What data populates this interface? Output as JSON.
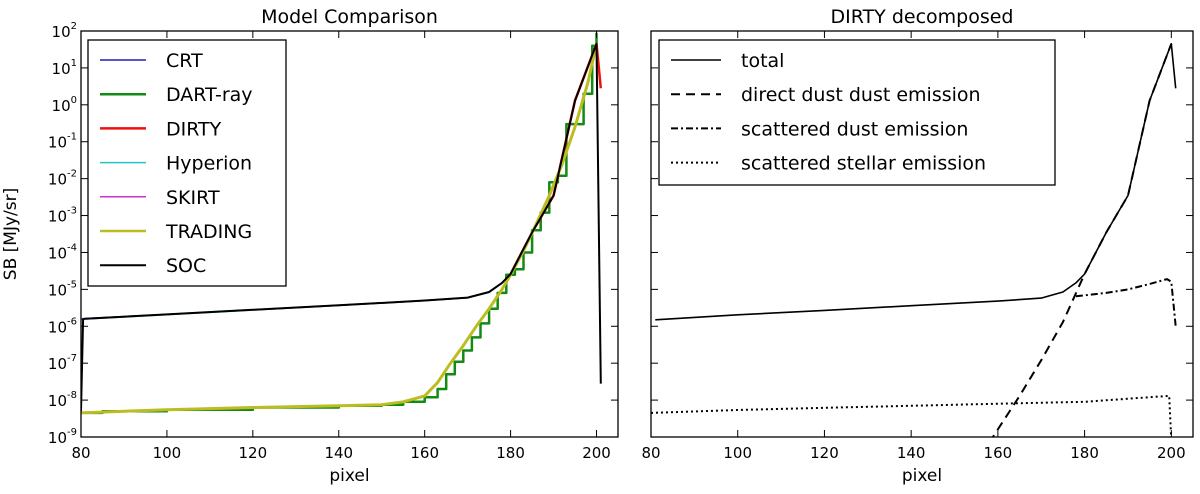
{
  "chart_data": [
    {
      "type": "line",
      "title": "Model Comparison",
      "xlabel": "pixel",
      "ylabel": "SB [MJy/sr]",
      "xlim": [
        80,
        205
      ],
      "ylim": [
        1e-09,
        100
      ],
      "yscale": "log",
      "xticks": [
        "80",
        "100",
        "120",
        "140",
        "160",
        "180",
        "200"
      ],
      "yticks": [
        {
          "base": "10",
          "exp": "2"
        },
        {
          "base": "10",
          "exp": "1"
        },
        {
          "base": "10",
          "exp": "0"
        },
        {
          "base": "10",
          "exp": "-1"
        },
        {
          "base": "10",
          "exp": "-2"
        },
        {
          "base": "10",
          "exp": "-3"
        },
        {
          "base": "10",
          "exp": "-4"
        },
        {
          "base": "10",
          "exp": "-5"
        },
        {
          "base": "10",
          "exp": "-6"
        },
        {
          "base": "10",
          "exp": "-7"
        },
        {
          "base": "10",
          "exp": "-8"
        },
        {
          "base": "10",
          "exp": "-9"
        }
      ],
      "legend_position": "upper-left",
      "grid": false,
      "series": [
        {
          "name": "CRT",
          "color": "#1f1fb4",
          "width": 1.5,
          "dash": "",
          "x": [
            80,
            100,
            120,
            140,
            160,
            170,
            175,
            178,
            180,
            185,
            190,
            195,
            200
          ],
          "y": [
            1.6e-06,
            2.1e-06,
            2.8e-06,
            3.7e-06,
            5e-06,
            6e-06,
            8.5e-06,
            1.5e-05,
            2.6e-05,
            0.00035,
            0.0035,
            1.3,
            45
          ]
        },
        {
          "name": "DART-ray",
          "color": "#138a13",
          "width": 2.5,
          "dash": "",
          "step": true,
          "x": [
            81,
            85,
            100,
            120,
            140,
            150,
            155,
            160,
            163,
            165,
            167,
            169,
            171,
            173,
            175,
            177,
            179,
            181,
            183,
            185,
            187,
            189,
            191,
            193,
            195,
            197,
            199,
            200
          ],
          "y": [
            4.5e-09,
            5e-09,
            5.5e-09,
            6.3e-09,
            7e-09,
            7.5e-09,
            9e-09,
            1.2e-08,
            2e-08,
            5e-08,
            1.1e-07,
            2.2e-07,
            5e-07,
            1.2e-06,
            3e-06,
            8e-06,
            2.5e-05,
            3.5e-05,
            0.0001,
            0.0004,
            0.0012,
            0.008,
            0.012,
            0.3,
            0.3,
            2.0,
            40.0,
            90.0
          ]
        },
        {
          "name": "DIRTY",
          "color": "#ee1111",
          "width": 2.5,
          "dash": "",
          "x": [
            180,
            185,
            190,
            195,
            200,
            201
          ],
          "y": [
            2.6e-05,
            0.00035,
            0.0035,
            1.3,
            45,
            2.8
          ]
        },
        {
          "name": "Hyperion",
          "color": "#22c4c4",
          "width": 1.5,
          "dash": "",
          "x": [
            80,
            100,
            120,
            140,
            160,
            170,
            175,
            178
          ],
          "y": [
            1.55e-06,
            2.05e-06,
            2.75e-06,
            3.65e-06,
            4.9e-06,
            5.9e-06,
            8.3e-06,
            1.5e-05
          ]
        },
        {
          "name": "SKIRT",
          "color": "#cc33cc",
          "width": 1.5,
          "dash": "",
          "x": [
            80,
            100,
            120,
            140,
            160,
            170
          ],
          "y": [
            1.58e-06,
            2.08e-06,
            2.78e-06,
            3.68e-06,
            4.95e-06,
            5.95e-06
          ]
        },
        {
          "name": "TRADING",
          "color": "#bcbd22",
          "width": 3,
          "dash": "",
          "x": [
            80,
            100,
            120,
            140,
            150,
            155,
            160,
            163,
            166,
            169,
            172,
            175,
            178,
            180,
            183,
            186,
            189,
            192,
            195,
            198,
            200
          ],
          "y": [
            4.5e-09,
            5.5e-09,
            6.3e-09,
            7e-09,
            7.5e-09,
            9e-09,
            1.3e-08,
            3e-08,
            1e-07,
            3e-07,
            1e-06,
            3e-06,
            1e-05,
            2.5e-05,
            0.00011,
            0.0006,
            0.0035,
            0.025,
            0.25,
            4.0,
            45.0
          ]
        },
        {
          "name": "SOC",
          "color": "#000000",
          "width": 2,
          "dash": "",
          "x": [
            80,
            80.5,
            81,
            100,
            120,
            140,
            160,
            170,
            175,
            178,
            180,
            185,
            190,
            195,
            200,
            201
          ],
          "y": [
            5e-09,
            1.55e-06,
            1.6e-06,
            2.1e-06,
            2.8e-06,
            3.7e-06,
            5e-06,
            6e-06,
            8.5e-06,
            1.5e-05,
            2.6e-05,
            0.00035,
            0.0035,
            1.3,
            45,
            2.8e-08
          ]
        }
      ]
    },
    {
      "type": "line",
      "title": "DIRTY decomposed",
      "xlabel": "pixel",
      "ylabel": "",
      "xlim": [
        80,
        205
      ],
      "ylim": [
        1e-09,
        100
      ],
      "yscale": "log",
      "xticks": [
        "80",
        "100",
        "120",
        "140",
        "160",
        "180",
        "200"
      ],
      "yticks": [],
      "legend_position": "upper-left",
      "grid": false,
      "series": [
        {
          "name": "total",
          "color": "#000000",
          "width": 1.6,
          "dash": "",
          "x": [
            81,
            100,
            120,
            140,
            160,
            170,
            175,
            178,
            180,
            185,
            190,
            195,
            200,
            201
          ],
          "y": [
            1.5e-06,
            2.05e-06,
            2.7e-06,
            3.6e-06,
            4.8e-06,
            5.8e-06,
            8.5e-06,
            1.5e-05,
            2.6e-05,
            0.00035,
            0.0035,
            1.3,
            45,
            2.8
          ]
        },
        {
          "name": "direct dust dust emission",
          "color": "#000000",
          "width": 2,
          "dash": "9,6",
          "x": [
            158,
            165,
            170,
            175,
            180,
            185,
            190,
            195,
            200
          ],
          "y": [
            7e-10,
            1.3e-08,
            1.2e-07,
            1.3e-06,
            2.6e-05,
            0.00035,
            0.0035,
            1.3,
            45
          ]
        },
        {
          "name": "scattered dust emission",
          "color": "#000000",
          "width": 2,
          "dash": "7,3,2,3",
          "x": [
            178,
            185,
            190,
            195,
            199,
            200,
            201
          ],
          "y": [
            6.5e-06,
            8e-06,
            1e-05,
            1.4e-05,
            1.9e-05,
            1.6e-05,
            1e-06
          ]
        },
        {
          "name": "scattered stellar emission",
          "color": "#000000",
          "width": 2,
          "dash": "2,3",
          "x": [
            80,
            100,
            120,
            140,
            160,
            180,
            195,
            199.5,
            200
          ],
          "y": [
            4.5e-09,
            5.4e-09,
            6.2e-09,
            7e-09,
            8e-09,
            9e-09,
            1.2e-08,
            1.3e-08,
            8e-10
          ]
        }
      ]
    }
  ]
}
